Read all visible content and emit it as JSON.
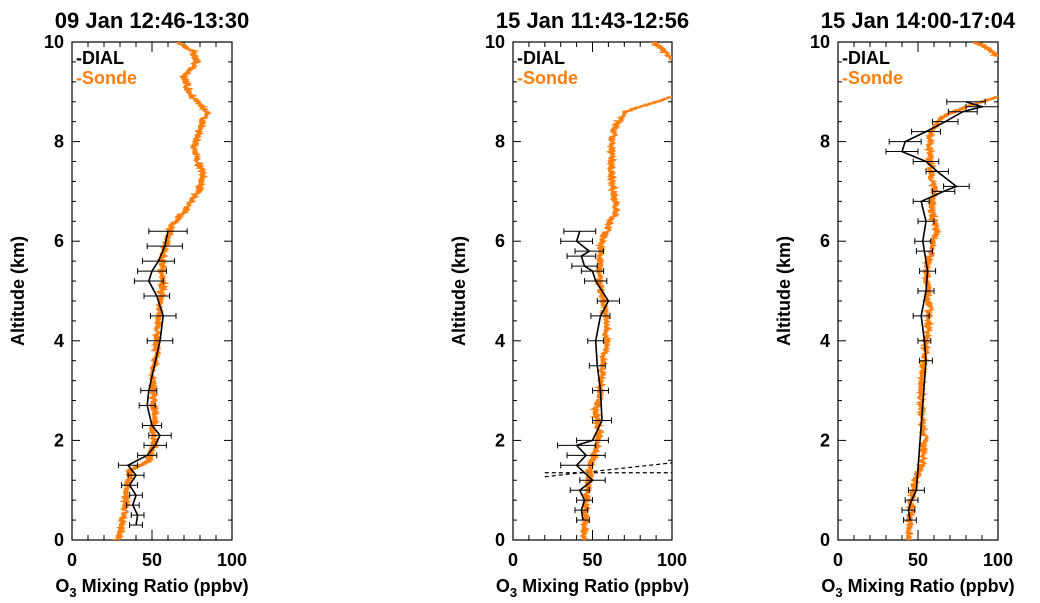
{
  "figure": {
    "background": "#ffffff"
  },
  "colors": {
    "dial": "#000000",
    "sonde": "#ff7f0e"
  },
  "chart_data": [
    {
      "type": "line",
      "title": "09 Jan 12:46-13:30",
      "xlabel_base": "O",
      "xlabel_sub": "3",
      "xlabel_rest": " Mixing Ratio (ppbv)",
      "ylabel": "Altitude (km)",
      "xlim": [
        0,
        100
      ],
      "ylim": [
        0,
        10
      ],
      "xticks": [
        "0",
        "50",
        "100"
      ],
      "yticks": [
        "0",
        "2",
        "4",
        "6",
        "8",
        "10"
      ],
      "legend": [
        "-DIAL",
        "-Sonde"
      ],
      "legend_position": "top-left",
      "series": [
        {
          "name": "-Sonde",
          "color": "#ff7f0e",
          "points": [
            [
              29,
              0
            ],
            [
              31,
              0.3
            ],
            [
              33,
              0.6
            ],
            [
              34,
              0.9
            ],
            [
              35,
              1.2
            ],
            [
              36,
              1.4
            ],
            [
              43,
              1.5
            ],
            [
              48,
              1.6
            ],
            [
              50,
              1.8
            ],
            [
              52,
              2.0
            ],
            [
              50,
              2.2
            ],
            [
              52,
              2.5
            ],
            [
              51,
              2.8
            ],
            [
              50,
              3.2
            ],
            [
              52,
              3.6
            ],
            [
              53,
              4.0
            ],
            [
              54,
              4.4
            ],
            [
              55,
              4.8
            ],
            [
              57,
              5.2
            ],
            [
              56,
              5.6
            ],
            [
              59,
              6.0
            ],
            [
              62,
              6.3
            ],
            [
              70,
              6.6
            ],
            [
              79,
              7.0
            ],
            [
              82,
              7.4
            ],
            [
              76,
              7.8
            ],
            [
              79,
              8.2
            ],
            [
              84,
              8.6
            ],
            [
              73,
              9.0
            ],
            [
              70,
              9.3
            ],
            [
              78,
              9.6
            ],
            [
              76,
              9.8
            ],
            [
              66,
              10.0
            ]
          ]
        },
        {
          "name": "-DIAL",
          "color": "#000000",
          "points": [
            [
              40,
              0.3
            ],
            [
              41,
              0.5
            ],
            [
              38,
              0.7
            ],
            [
              40,
              0.9
            ],
            [
              36,
              1.1
            ],
            [
              40,
              1.3
            ],
            [
              35,
              1.5
            ],
            [
              47,
              1.7
            ],
            [
              52,
              1.9
            ],
            [
              55,
              2.1
            ],
            [
              50,
              2.3
            ],
            [
              47,
              2.7
            ],
            [
              48,
              3.0
            ],
            [
              55,
              4.0
            ],
            [
              57,
              4.5
            ],
            [
              53,
              4.9
            ],
            [
              48,
              5.2
            ],
            [
              50,
              5.4
            ],
            [
              54,
              5.6
            ],
            [
              58,
              5.9
            ],
            [
              60,
              6.2
            ]
          ],
          "errors": [
            4,
            4,
            4,
            4,
            5,
            5,
            6,
            6,
            7,
            7,
            6,
            5,
            5,
            8,
            8,
            8,
            9,
            9,
            10,
            11,
            12
          ]
        }
      ]
    },
    {
      "type": "line",
      "title": "15 Jan 11:43-12:56",
      "xlabel_base": "O",
      "xlabel_sub": "3",
      "xlabel_rest": " Mixing Ratio (ppbv)",
      "ylabel": "Altitude (km)",
      "xlim": [
        0,
        100
      ],
      "ylim": [
        0,
        10
      ],
      "xticks": [
        "0",
        "50",
        "100"
      ],
      "yticks": [
        "0",
        "2",
        "4",
        "6",
        "8",
        "10"
      ],
      "legend": [
        "-DIAL",
        "-Sonde"
      ],
      "legend_position": "top-left",
      "series": [
        {
          "name": "-Sonde",
          "color": "#ff7f0e",
          "points": [
            [
              44,
              0
            ],
            [
              45,
              0.3
            ],
            [
              46,
              0.6
            ],
            [
              47,
              1.0
            ],
            [
              48,
              1.3
            ],
            [
              50,
              1.6
            ],
            [
              53,
              1.9
            ],
            [
              54,
              2.2
            ],
            [
              52,
              2.6
            ],
            [
              55,
              3.0
            ],
            [
              56,
              3.4
            ],
            [
              58,
              3.8
            ],
            [
              59,
              4.2
            ],
            [
              58,
              4.6
            ],
            [
              55,
              5.0
            ],
            [
              54,
              5.4
            ],
            [
              55,
              5.8
            ],
            [
              57,
              6.1
            ],
            [
              65,
              6.6
            ],
            [
              63,
              7.0
            ],
            [
              62,
              7.4
            ],
            [
              62,
              7.8
            ],
            [
              63,
              8.2
            ],
            [
              70,
              8.6
            ],
            [
              100,
              8.9
            ]
          ]
        },
        {
          "name": "-Sonde-top",
          "color": "#ff7f0e",
          "points": [
            [
              88,
              10.0
            ],
            [
              92,
              9.9
            ],
            [
              100,
              9.65
            ]
          ]
        },
        {
          "name": "-DIAL",
          "color": "#000000",
          "points": [
            [
              44,
              0.4
            ],
            [
              43,
              0.6
            ],
            [
              45,
              0.8
            ],
            [
              42,
              1.0
            ],
            [
              50,
              1.2
            ],
            [
              40,
              1.5
            ],
            [
              46,
              1.7
            ],
            [
              40,
              1.9
            ],
            [
              50,
              2.0
            ],
            [
              56,
              2.4
            ],
            [
              55,
              3.0
            ],
            [
              53,
              3.5
            ],
            [
              52,
              4.0
            ],
            [
              55,
              4.5
            ],
            [
              60,
              4.8
            ],
            [
              52,
              5.2
            ],
            [
              50,
              5.4
            ],
            [
              45,
              5.5
            ],
            [
              43,
              5.7
            ],
            [
              48,
              5.8
            ],
            [
              40,
              6.0
            ],
            [
              42,
              6.2
            ]
          ],
          "errors": [
            4,
            4,
            5,
            6,
            8,
            10,
            12,
            12,
            10,
            6,
            5,
            5,
            5,
            6,
            7,
            7,
            7,
            8,
            9,
            9,
            10,
            10
          ]
        }
      ],
      "dashed_lines": [
        {
          "x": [
            20,
            100
          ],
          "y": [
            1.27,
            1.55
          ]
        },
        {
          "x": [
            20,
            100
          ],
          "y": [
            1.35,
            1.35
          ]
        }
      ]
    },
    {
      "type": "line",
      "title": "15 Jan 14:00-17:04",
      "xlabel_base": "O",
      "xlabel_sub": "3",
      "xlabel_rest": " Mixing Ratio (ppbv)",
      "ylabel": "Altitude (km)",
      "xlim": [
        0,
        100
      ],
      "ylim": [
        0,
        10
      ],
      "xticks": [
        "0",
        "50",
        "100"
      ],
      "yticks": [
        "0",
        "2",
        "4",
        "6",
        "8",
        "10"
      ],
      "legend": [
        "-DIAL",
        "-Sonde"
      ],
      "legend_position": "top-left",
      "series": [
        {
          "name": "-Sonde",
          "color": "#ff7f0e",
          "points": [
            [
              44,
              0
            ],
            [
              45,
              0.4
            ],
            [
              46,
              0.8
            ],
            [
              48,
              1.2
            ],
            [
              53,
              1.6
            ],
            [
              54,
              2.0
            ],
            [
              52,
              2.5
            ],
            [
              52,
              3.0
            ],
            [
              53,
              3.4
            ],
            [
              55,
              4.0
            ],
            [
              57,
              4.5
            ],
            [
              56,
              5.0
            ],
            [
              55,
              5.4
            ],
            [
              58,
              5.8
            ],
            [
              62,
              6.2
            ],
            [
              58,
              6.6
            ],
            [
              60,
              7.0
            ],
            [
              58,
              7.4
            ],
            [
              57,
              7.8
            ],
            [
              58,
              8.2
            ],
            [
              65,
              8.5
            ],
            [
              80,
              8.7
            ],
            [
              100,
              8.9
            ]
          ]
        },
        {
          "name": "-Sonde-top",
          "color": "#ff7f0e",
          "points": [
            [
              85,
              10.0
            ],
            [
              92,
              9.9
            ],
            [
              100,
              9.7
            ]
          ]
        },
        {
          "name": "-DIAL",
          "color": "#000000",
          "points": [
            [
              45,
              0.4
            ],
            [
              44,
              0.6
            ],
            [
              46,
              0.8
            ],
            [
              49,
              1.0
            ],
            [
              55,
              3.6
            ],
            [
              54,
              4.0
            ],
            [
              52,
              4.5
            ],
            [
              55,
              5.0
            ],
            [
              56,
              5.4
            ],
            [
              54,
              5.8
            ],
            [
              53,
              6.0
            ],
            [
              55,
              6.4
            ],
            [
              52,
              6.8
            ],
            [
              66,
              7.0
            ],
            [
              74,
              7.1
            ],
            [
              62,
              7.4
            ],
            [
              55,
              7.6
            ],
            [
              40,
              7.8
            ],
            [
              42,
              8.0
            ],
            [
              55,
              8.2
            ],
            [
              67,
              8.4
            ],
            [
              78,
              8.6
            ],
            [
              90,
              8.7
            ],
            [
              80,
              8.8
            ]
          ],
          "errors": [
            4,
            4,
            4,
            5,
            4,
            4,
            5,
            5,
            5,
            5,
            5,
            5,
            5,
            7,
            8,
            7,
            8,
            10,
            10,
            9,
            8,
            9,
            10,
            12
          ]
        }
      ]
    }
  ]
}
